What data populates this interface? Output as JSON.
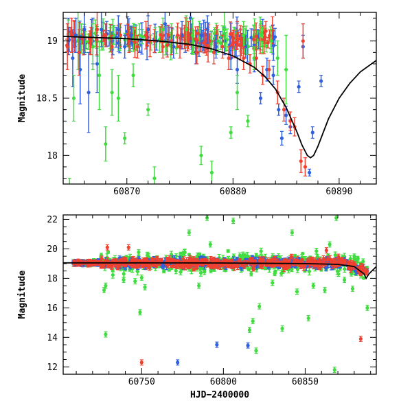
{
  "chart_data": [
    {
      "type": "scatter",
      "panel": "top",
      "xlabel": "",
      "ylabel": "Magnitude",
      "xlim": [
        60864,
        60893.5
      ],
      "ylim": [
        19.25,
        17.75
      ],
      "y_inverted": true,
      "x_ticks": [
        60870,
        60880,
        60890
      ],
      "y_ticks": [
        18,
        18.5,
        19
      ],
      "y_tick_labels": [
        "18",
        "18.5",
        "19"
      ],
      "series": [
        {
          "color": "#3060e0",
          "points": [
            [
              60864.5,
              19.0,
              0.12
            ],
            [
              60864.9,
              18.85,
              0.25
            ],
            [
              60865.2,
              19.05,
              0.15
            ],
            [
              60865.6,
              18.75,
              0.3
            ],
            [
              60866.0,
              19.1,
              0.2
            ],
            [
              60866.4,
              18.55,
              0.35
            ],
            [
              60866.8,
              19.0,
              0.2
            ],
            [
              60867.2,
              18.8,
              0.25
            ],
            [
              60867.6,
              19.1,
              0.15
            ],
            [
              60868.0,
              19.05,
              0.1
            ],
            [
              60868.6,
              19.0,
              0.08
            ],
            [
              60869.2,
              19.1,
              0.12
            ],
            [
              60869.8,
              18.95,
              0.1
            ],
            [
              60870.4,
              19.05,
              0.08
            ],
            [
              60871.2,
              19.0,
              0.1
            ],
            [
              60872.0,
              19.1,
              0.12
            ],
            [
              60872.8,
              19.0,
              0.08
            ],
            [
              60873.6,
              19.15,
              0.15
            ],
            [
              60874.4,
              18.95,
              0.1
            ],
            [
              60875.2,
              19.05,
              0.12
            ],
            [
              60876.0,
              19.2,
              0.2
            ],
            [
              60876.5,
              18.9,
              0.1
            ],
            [
              60877.0,
              19.05,
              0.1
            ],
            [
              60877.6,
              19.1,
              0.12
            ],
            [
              60878.4,
              18.95,
              0.1
            ],
            [
              60879.2,
              19.0,
              0.12
            ],
            [
              60879.8,
              18.85,
              0.1
            ],
            [
              60880.4,
              18.75,
              0.12
            ],
            [
              60881.2,
              18.95,
              0.1
            ],
            [
              60882.0,
              18.85,
              0.12
            ],
            [
              60882.6,
              18.5,
              0.05
            ],
            [
              60883.2,
              18.75,
              0.1
            ],
            [
              60883.8,
              18.7,
              0.08
            ],
            [
              60884.3,
              18.4,
              0.05
            ],
            [
              60884.6,
              18.15,
              0.06
            ],
            [
              60885.0,
              18.35,
              0.08
            ],
            [
              60885.4,
              18.25,
              0.06
            ],
            [
              60886.2,
              18.6,
              0.05
            ],
            [
              60886.6,
              18.95,
              0.1
            ],
            [
              60887.2,
              17.85,
              0.03
            ],
            [
              60887.5,
              18.2,
              0.05
            ],
            [
              60888.3,
              18.65,
              0.05
            ]
          ]
        },
        {
          "color": "#40dc40",
          "points": [
            [
              60864.6,
              17.65,
              0.15
            ],
            [
              60865.0,
              18.5,
              0.2
            ],
            [
              60865.4,
              19.0,
              0.25
            ],
            [
              60866.8,
              18.95,
              0.2
            ],
            [
              60867.4,
              18.7,
              0.3
            ],
            [
              60868.0,
              18.1,
              0.15
            ],
            [
              60868.6,
              18.55,
              0.2
            ],
            [
              60869.2,
              18.5,
              0.2
            ],
            [
              60869.8,
              18.15,
              0.05
            ],
            [
              60870.6,
              18.7,
              0.1
            ],
            [
              60871.2,
              19.05,
              0.1
            ],
            [
              60872.0,
              18.4,
              0.05
            ],
            [
              60872.6,
              17.8,
              0.1
            ],
            [
              60873.4,
              19.1,
              0.1
            ],
            [
              60874.2,
              19.05,
              0.1
            ],
            [
              60875.6,
              19.1,
              0.12
            ],
            [
              60876.2,
              19.05,
              0.15
            ],
            [
              60877.0,
              18.0,
              0.08
            ],
            [
              60878.0,
              17.85,
              0.1
            ],
            [
              60878.6,
              19.0,
              0.1
            ],
            [
              60879.2,
              19.1,
              0.15
            ],
            [
              60879.8,
              18.2,
              0.05
            ],
            [
              60880.4,
              18.55,
              0.15
            ],
            [
              60881.0,
              19.05,
              0.12
            ],
            [
              60881.4,
              18.3,
              0.05
            ],
            [
              60882.0,
              18.85,
              0.1
            ],
            [
              60882.6,
              19.05,
              0.1
            ],
            [
              60883.6,
              19.0,
              0.1
            ],
            [
              60884.2,
              18.85,
              0.15
            ],
            [
              60885.0,
              18.75,
              0.3
            ]
          ]
        },
        {
          "color": "#f04030",
          "points": [
            [
              60864.4,
              18.95,
              0.2
            ],
            [
              60864.8,
              19.05,
              0.15
            ],
            [
              60865.5,
              18.9,
              0.2
            ],
            [
              60866.6,
              19.0,
              0.12
            ],
            [
              60867.2,
              19.1,
              0.15
            ],
            [
              60868.0,
              19.05,
              0.1
            ],
            [
              60868.6,
              18.95,
              0.1
            ],
            [
              60869.4,
              19.05,
              0.1
            ],
            [
              60870.2,
              19.0,
              0.1
            ],
            [
              60871.0,
              18.95,
              0.1
            ],
            [
              60871.8,
              19.05,
              0.12
            ],
            [
              60872.6,
              19.0,
              0.1
            ],
            [
              60873.4,
              18.95,
              0.1
            ],
            [
              60874.2,
              19.0,
              0.12
            ],
            [
              60875.0,
              18.95,
              0.1
            ],
            [
              60875.8,
              19.05,
              0.12
            ],
            [
              60876.6,
              18.9,
              0.1
            ],
            [
              60877.4,
              19.0,
              0.1
            ],
            [
              60878.2,
              18.9,
              0.1
            ],
            [
              60879.0,
              18.95,
              0.1
            ],
            [
              60879.6,
              18.85,
              0.1
            ],
            [
              60880.4,
              19.05,
              0.12
            ],
            [
              60881.0,
              18.85,
              0.1
            ],
            [
              60881.6,
              18.8,
              0.08
            ],
            [
              60882.2,
              18.85,
              0.1
            ],
            [
              60882.8,
              18.7,
              0.08
            ],
            [
              60883.4,
              18.75,
              0.08
            ],
            [
              60884.2,
              18.55,
              0.1
            ],
            [
              60884.8,
              18.4,
              0.1
            ],
            [
              60885.4,
              18.3,
              0.08
            ],
            [
              60885.8,
              18.25,
              0.08
            ],
            [
              60886.4,
              17.95,
              0.1
            ],
            [
              60886.8,
              17.9,
              0.08
            ],
            [
              60886.6,
              19.0,
              0.15
            ]
          ]
        }
      ],
      "model_curve": {
        "color": "#000000",
        "points": [
          [
            60864,
            19.04
          ],
          [
            60867,
            19.03
          ],
          [
            60870,
            19.02
          ],
          [
            60873,
            19.0
          ],
          [
            60876,
            18.97
          ],
          [
            60878,
            18.93
          ],
          [
            60880,
            18.87
          ],
          [
            60882,
            18.77
          ],
          [
            60883,
            18.69
          ],
          [
            60884,
            18.58
          ],
          [
            60885,
            18.42
          ],
          [
            60886,
            18.21
          ],
          [
            60886.5,
            18.09
          ],
          [
            60887,
            18.0
          ],
          [
            60887.3,
            17.98
          ],
          [
            60887.6,
            18.0
          ],
          [
            60888,
            18.08
          ],
          [
            60888.5,
            18.2
          ],
          [
            60889,
            18.32
          ],
          [
            60890,
            18.5
          ],
          [
            60891,
            18.63
          ],
          [
            60892,
            18.73
          ],
          [
            60893.5,
            18.83
          ]
        ]
      }
    },
    {
      "type": "scatter",
      "panel": "bottom",
      "xlabel": "HJD−2400000",
      "ylabel": "Magnitude",
      "xlim": [
        60702,
        60893.5
      ],
      "ylim": [
        22.3,
        11.5
      ],
      "y_inverted": true,
      "x_ticks": [
        60750,
        60800,
        60850
      ],
      "y_ticks": [
        12,
        14,
        16,
        18,
        20,
        22
      ],
      "series": [
        {
          "color": "#3060e0",
          "outliers": [
            [
              60772,
              12.3
            ],
            [
              60796,
              13.5
            ],
            [
              60815,
              13.45
            ]
          ]
        },
        {
          "color": "#40dc40",
          "outliers": [
            [
              60728,
              14.2
            ],
            [
              60727,
              17.2
            ],
            [
              60728,
              17.5
            ],
            [
              60739,
              17.9
            ],
            [
              60746,
              17.8
            ],
            [
              60749,
              15.7
            ],
            [
              60750,
              18.05
            ],
            [
              60752,
              17.4
            ],
            [
              60779,
              21.1
            ],
            [
              60785,
              17.5
            ],
            [
              60790,
              22.1
            ],
            [
              60792,
              20.3
            ],
            [
              60806,
              21.9
            ],
            [
              60812,
              19.6
            ],
            [
              60816,
              14.5
            ],
            [
              60818,
              15.1
            ],
            [
              60820,
              13.1
            ],
            [
              60822,
              16.1
            ],
            [
              60830,
              17.7
            ],
            [
              60836,
              14.6
            ],
            [
              60842,
              21.1
            ],
            [
              60845,
              17.1
            ],
            [
              60850,
              19.3
            ],
            [
              60852,
              15.3
            ],
            [
              60855,
              17.5
            ],
            [
              60862,
              17.2
            ],
            [
              60865,
              20.3
            ],
            [
              60868,
              11.8
            ],
            [
              60869,
              22.1
            ],
            [
              60874,
              17.9
            ],
            [
              60879,
              17.3
            ],
            [
              60888,
              16.0
            ]
          ]
        },
        {
          "color": "#f04030",
          "outliers": [
            [
              60729,
              20.1
            ],
            [
              60742,
              20.1
            ],
            [
              60750,
              12.3
            ],
            [
              60863,
              19.9
            ],
            [
              60884,
              13.9
            ]
          ]
        }
      ],
      "model_curve": {
        "color": "#000000",
        "points": [
          [
            60702,
            19.05
          ],
          [
            60750,
            19.05
          ],
          [
            60800,
            19.04
          ],
          [
            60850,
            19.0
          ],
          [
            60870,
            18.95
          ],
          [
            60880,
            18.8
          ],
          [
            60886,
            18.3
          ],
          [
            60887.3,
            18.0
          ],
          [
            60889,
            18.3
          ],
          [
            60893.5,
            18.8
          ]
        ]
      }
    }
  ]
}
